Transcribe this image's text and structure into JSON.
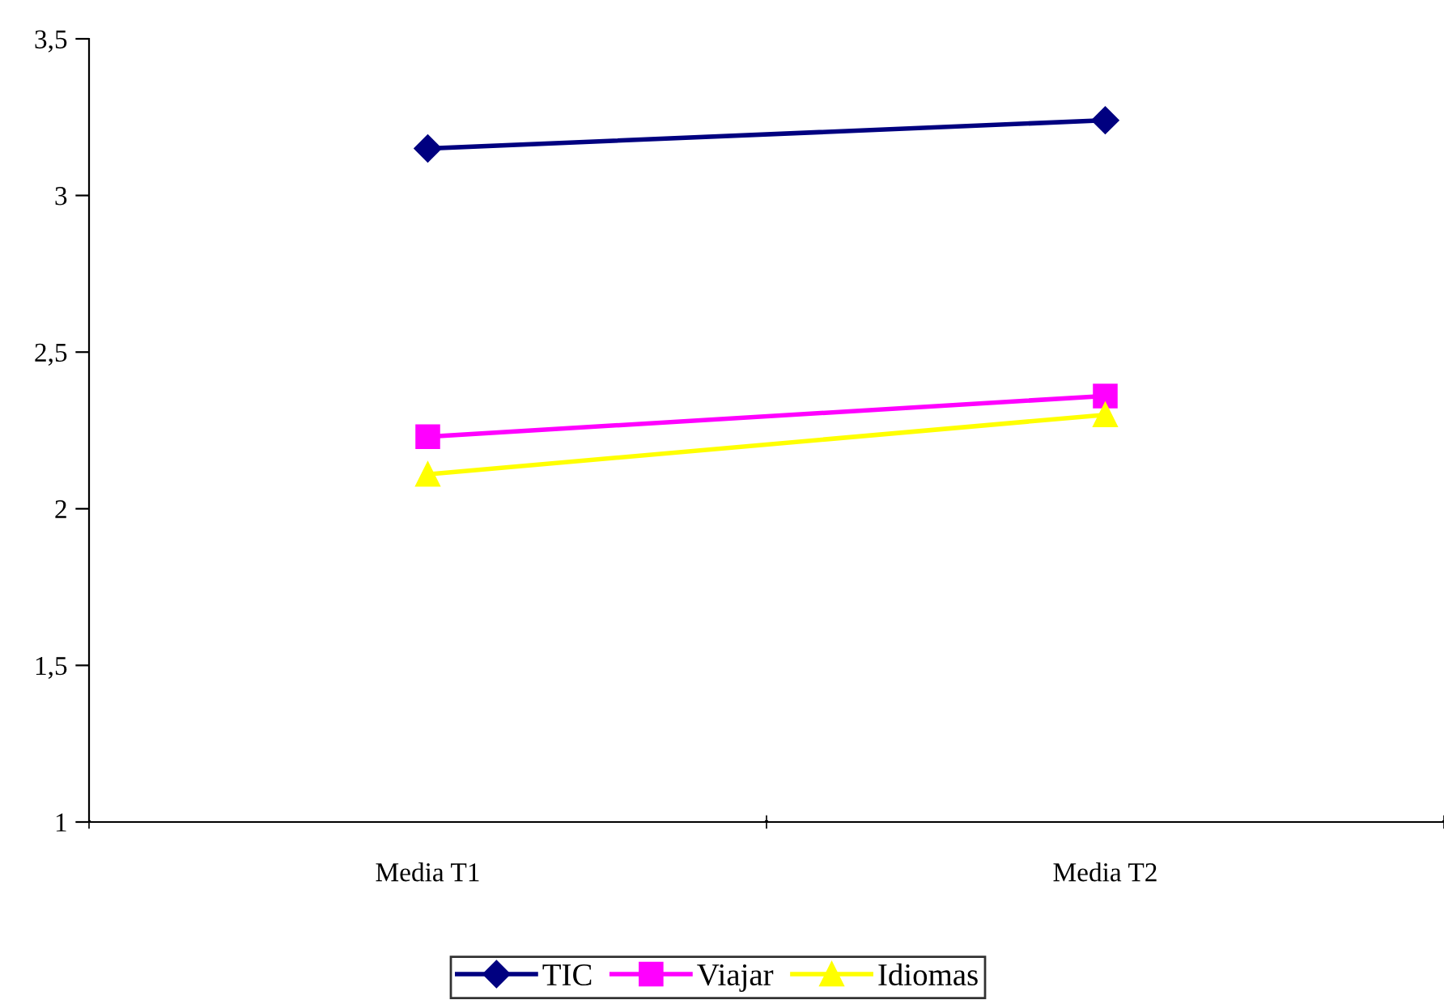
{
  "chart_data": {
    "type": "line",
    "categories": [
      "Media T1",
      "Media T2"
    ],
    "series": [
      {
        "name": "TIC",
        "color": "#000080",
        "marker": "diamond",
        "values": [
          3.15,
          3.24
        ]
      },
      {
        "name": "Viajar",
        "color": "#ff00ff",
        "marker": "square",
        "values": [
          2.23,
          2.36
        ]
      },
      {
        "name": "Idiomas",
        "color": "#ffff00",
        "marker": "triangle",
        "values": [
          2.11,
          2.3
        ]
      }
    ],
    "ylim": [
      1,
      3.5
    ],
    "yticks": [
      1,
      {
        "value": 1.5,
        "label": "1,5"
      },
      2,
      {
        "value": 2.5,
        "label": "2,5"
      },
      3,
      {
        "value": 3.5,
        "label": "3,5"
      }
    ],
    "grid": false,
    "legend": "bottom",
    "line_style": "solid"
  }
}
